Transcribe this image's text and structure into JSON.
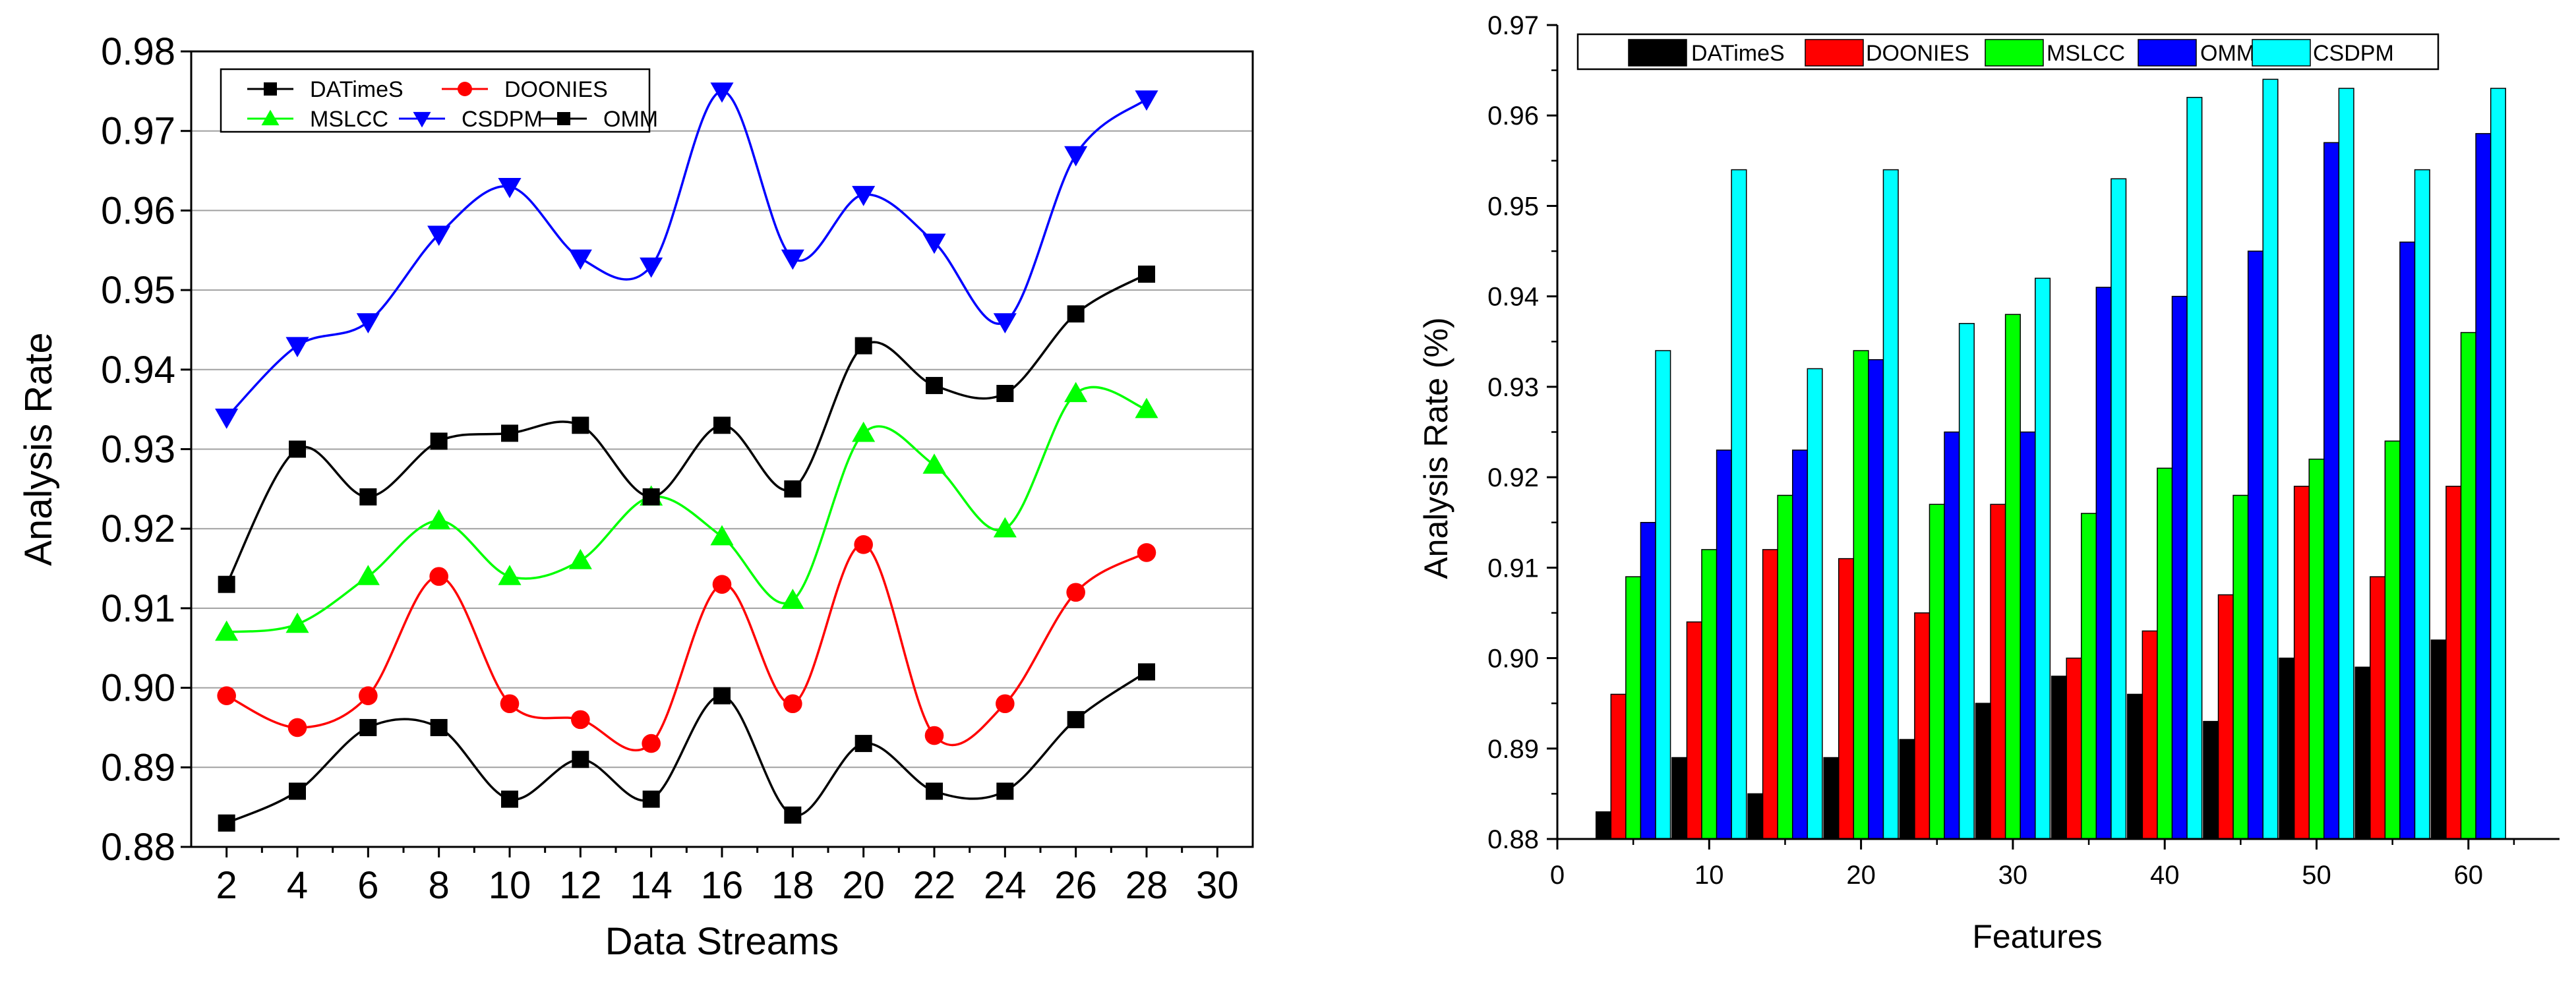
{
  "chart_data": [
    {
      "type": "line",
      "xlabel": "Data Streams",
      "ylabel": "Analysis Rate",
      "xlim": [
        1,
        31
      ],
      "ylim": [
        0.88,
        0.98
      ],
      "xticks": [
        2,
        4,
        6,
        8,
        10,
        12,
        14,
        16,
        18,
        20,
        22,
        24,
        26,
        28,
        30
      ],
      "xtick_labels": [
        "2",
        "4",
        "6",
        "8",
        "10",
        "12",
        "14",
        "16",
        "18",
        "20",
        "22",
        "24",
        "26",
        "28",
        "30"
      ],
      "yticks": [
        0.88,
        0.89,
        0.9,
        0.91,
        0.92,
        0.93,
        0.94,
        0.95,
        0.96,
        0.97,
        0.98
      ],
      "ytick_labels": [
        "0.88",
        "0.89",
        "0.90",
        "0.91",
        "0.92",
        "0.93",
        "0.94",
        "0.95",
        "0.96",
        "0.97",
        "0.98"
      ],
      "grid": "horizontal",
      "legend_position": "top-left",
      "x": [
        2,
        4,
        6,
        8,
        10,
        12,
        14,
        16,
        18,
        20,
        22,
        24,
        26,
        28
      ],
      "series": [
        {
          "name": "DATimeS",
          "color": "#000000",
          "marker": "square",
          "values": [
            0.883,
            0.887,
            0.895,
            0.895,
            0.886,
            0.891,
            0.886,
            0.899,
            0.884,
            0.893,
            0.887,
            0.887,
            0.896,
            0.902
          ]
        },
        {
          "name": "DOONIES",
          "color": "#ff0000",
          "marker": "circle",
          "values": [
            0.899,
            0.895,
            0.899,
            0.914,
            0.898,
            0.896,
            0.893,
            0.913,
            0.898,
            0.918,
            0.894,
            0.898,
            0.912,
            0.917
          ]
        },
        {
          "name": "MSLCC",
          "color": "#00ff00",
          "marker": "triangle-up",
          "values": [
            0.907,
            0.908,
            0.914,
            0.921,
            0.914,
            0.916,
            0.924,
            0.919,
            0.911,
            0.932,
            0.928,
            0.92,
            0.937,
            0.935
          ]
        },
        {
          "name": "CSDPM",
          "color": "#0000ff",
          "marker": "triangle-down",
          "values": [
            0.934,
            0.943,
            0.946,
            0.957,
            0.963,
            0.954,
            0.953,
            0.975,
            0.954,
            0.962,
            0.956,
            0.946,
            0.967,
            0.974
          ]
        },
        {
          "name": "OMM",
          "color": "#000000",
          "marker": "square",
          "values": [
            0.913,
            0.93,
            0.924,
            0.931,
            0.932,
            0.933,
            0.924,
            0.933,
            0.925,
            0.943,
            0.938,
            0.937,
            0.947,
            0.952
          ]
        }
      ]
    },
    {
      "type": "bar",
      "xlabel": "Features",
      "ylabel": "Analysis Rate (%)",
      "xlim": [
        0,
        66
      ],
      "ylim": [
        0.88,
        0.97
      ],
      "xticks": [
        0,
        10,
        20,
        30,
        40,
        50,
        60
      ],
      "xtick_labels": [
        "0",
        "10",
        "20",
        "30",
        "40",
        "50",
        "60"
      ],
      "yticks": [
        0.88,
        0.89,
        0.9,
        0.91,
        0.92,
        0.93,
        0.94,
        0.95,
        0.96,
        0.97
      ],
      "ytick_labels": [
        "0.88",
        "0.89",
        "0.90",
        "0.91",
        "0.92",
        "0.93",
        "0.94",
        "0.95",
        "0.96",
        "0.97"
      ],
      "grid": "none",
      "legend_position": "top",
      "categories": [
        5,
        10,
        15,
        20,
        25,
        30,
        35,
        40,
        45,
        50,
        55,
        60
      ],
      "series": [
        {
          "name": "DATimeS",
          "color": "#000000",
          "values": [
            0.883,
            0.889,
            0.885,
            0.889,
            0.891,
            0.895,
            0.898,
            0.896,
            0.893,
            0.9,
            0.899,
            0.902
          ]
        },
        {
          "name": "DOONIES",
          "color": "#ff0000",
          "values": [
            0.896,
            0.904,
            0.912,
            0.911,
            0.905,
            0.917,
            0.9,
            0.903,
            0.907,
            0.919,
            0.909,
            0.919
          ]
        },
        {
          "name": "MSLCC",
          "color": "#00ff00",
          "values": [
            0.909,
            0.912,
            0.918,
            0.934,
            0.917,
            0.938,
            0.916,
            0.921,
            0.918,
            0.922,
            0.924,
            0.936
          ]
        },
        {
          "name": "OMM",
          "color": "#0000ff",
          "values": [
            0.915,
            0.923,
            0.923,
            0.933,
            0.925,
            0.925,
            0.941,
            0.94,
            0.945,
            0.957,
            0.946,
            0.958
          ]
        },
        {
          "name": "CSDPM",
          "color": "#00ffff",
          "values": [
            0.934,
            0.954,
            0.932,
            0.954,
            0.937,
            0.942,
            0.953,
            0.962,
            0.964,
            0.963,
            0.954,
            0.963
          ]
        }
      ]
    }
  ]
}
